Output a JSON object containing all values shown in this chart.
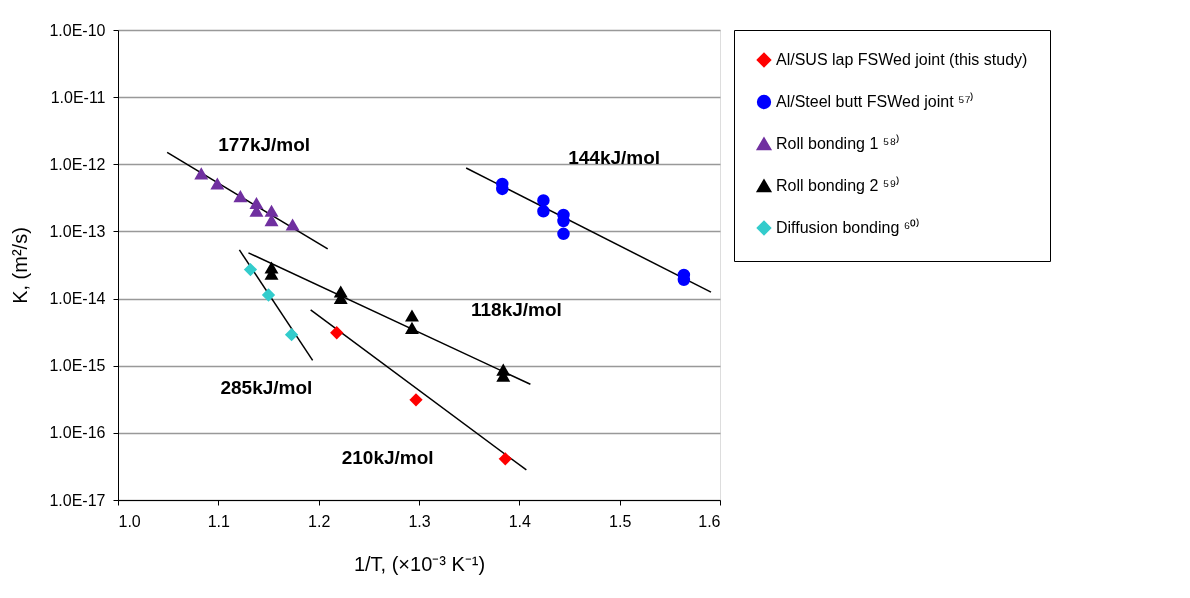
{
  "chart_data": {
    "type": "scatter",
    "xlabel": "1/T, (×10⁻³ K⁻¹)",
    "ylabel": "K, (m²/s)",
    "log": "y",
    "grid": "y",
    "legend": "right",
    "xlim": [
      1.0,
      1.6
    ],
    "xticks": [
      {
        "value": 1.0,
        "label": "1.0"
      },
      {
        "value": 1.1,
        "label": "1.1"
      },
      {
        "value": 1.2,
        "label": "1.2"
      },
      {
        "value": 1.3,
        "label": "1.3"
      },
      {
        "value": 1.4,
        "label": "1.4"
      },
      {
        "value": 1.5,
        "label": "1.5"
      },
      {
        "value": 1.6,
        "label": "1.6"
      }
    ],
    "ylim": [
      1e-17,
      1e-10
    ],
    "yticks": [
      {
        "value": 1e-17,
        "label": "1.0E-17"
      },
      {
        "value": 1e-16,
        "label": "1.0E-16"
      },
      {
        "value": 1e-15,
        "label": "1.0E-15"
      },
      {
        "value": 1e-14,
        "label": "1.0E-14"
      },
      {
        "value": 1e-13,
        "label": "1.0E-13"
      },
      {
        "value": 1e-12,
        "label": "1.0E-12"
      },
      {
        "value": 1e-11,
        "label": "1.0E-11"
      },
      {
        "value": 1e-10,
        "label": "1.0E-10"
      }
    ],
    "series": [
      {
        "name": "Al/SUS lap FSWed joint (this study)",
        "color": "#ff0000",
        "marker": "diamond",
        "x": [
          1.218,
          1.297,
          1.386
        ],
        "values": [
          3.1e-15,
          3.1e-16,
          4.1e-17
        ]
      },
      {
        "name": "Al/Steel butt FSWed joint ⁵⁷⁾",
        "color": "#0000ff",
        "marker": "circle",
        "x": [
          1.383,
          1.383,
          1.424,
          1.424,
          1.444,
          1.444,
          1.444,
          1.564,
          1.564
        ],
        "values": [
          5.1e-13,
          4.3e-13,
          2.9e-13,
          2e-13,
          1.76e-13,
          1.43e-13,
          9.2e-14,
          2.25e-14,
          1.9e-14
        ]
      },
      {
        "name": "Roll bonding 1 ⁵⁸⁾",
        "color": "#7030a0",
        "marker": "triangle",
        "x": [
          1.083,
          1.099,
          1.122,
          1.138,
          1.138,
          1.153,
          1.153,
          1.174
        ],
        "values": [
          7.2e-13,
          5.1e-13,
          3.3e-13,
          2.6e-13,
          2e-13,
          2e-13,
          1.45e-13,
          1.25e-13
        ]
      },
      {
        "name": "Roll bonding 2 ⁵⁹⁾",
        "color": "#000000",
        "marker": "triangle",
        "x": [
          1.153,
          1.153,
          1.222,
          1.222,
          1.293,
          1.293,
          1.384,
          1.384
        ],
        "values": [
          2.85e-14,
          2.3e-14,
          1.25e-14,
          1e-14,
          5.5e-15,
          3.6e-15,
          8.6e-16,
          7e-16
        ]
      },
      {
        "name": "Diffusion bonding ⁶⁰⁾",
        "color": "#33cccc",
        "marker": "diamond",
        "x": [
          1.132,
          1.15,
          1.173
        ],
        "values": [
          2.7e-14,
          1.13e-14,
          2.9e-15
        ]
      },
      {
        "type": "line",
        "color": "#000000",
        "x": [
          1.049,
          1.209
        ],
        "values": [
          1.5e-12,
          5.5e-14
        ]
      },
      {
        "type": "line",
        "color": "#000000",
        "x": [
          1.347,
          1.591
        ],
        "values": [
          8.8e-13,
          1.25e-14
        ]
      },
      {
        "type": "line",
        "color": "#000000",
        "x": [
          1.13,
          1.411
        ],
        "values": [
          4.8e-14,
          5.3e-16
        ]
      },
      {
        "type": "line",
        "color": "#000000",
        "x": [
          1.121,
          1.194
        ],
        "values": [
          5.3e-14,
          1.2e-15
        ]
      },
      {
        "type": "line",
        "color": "#000000",
        "x": [
          1.192,
          1.407
        ],
        "values": [
          6.8e-15,
          2.8e-17
        ]
      }
    ],
    "annotations": [
      "177kJ/mol",
      "144kJ/mol",
      "118kJ/mol",
      "285kJ/mol",
      "210kJ/mol"
    ]
  }
}
